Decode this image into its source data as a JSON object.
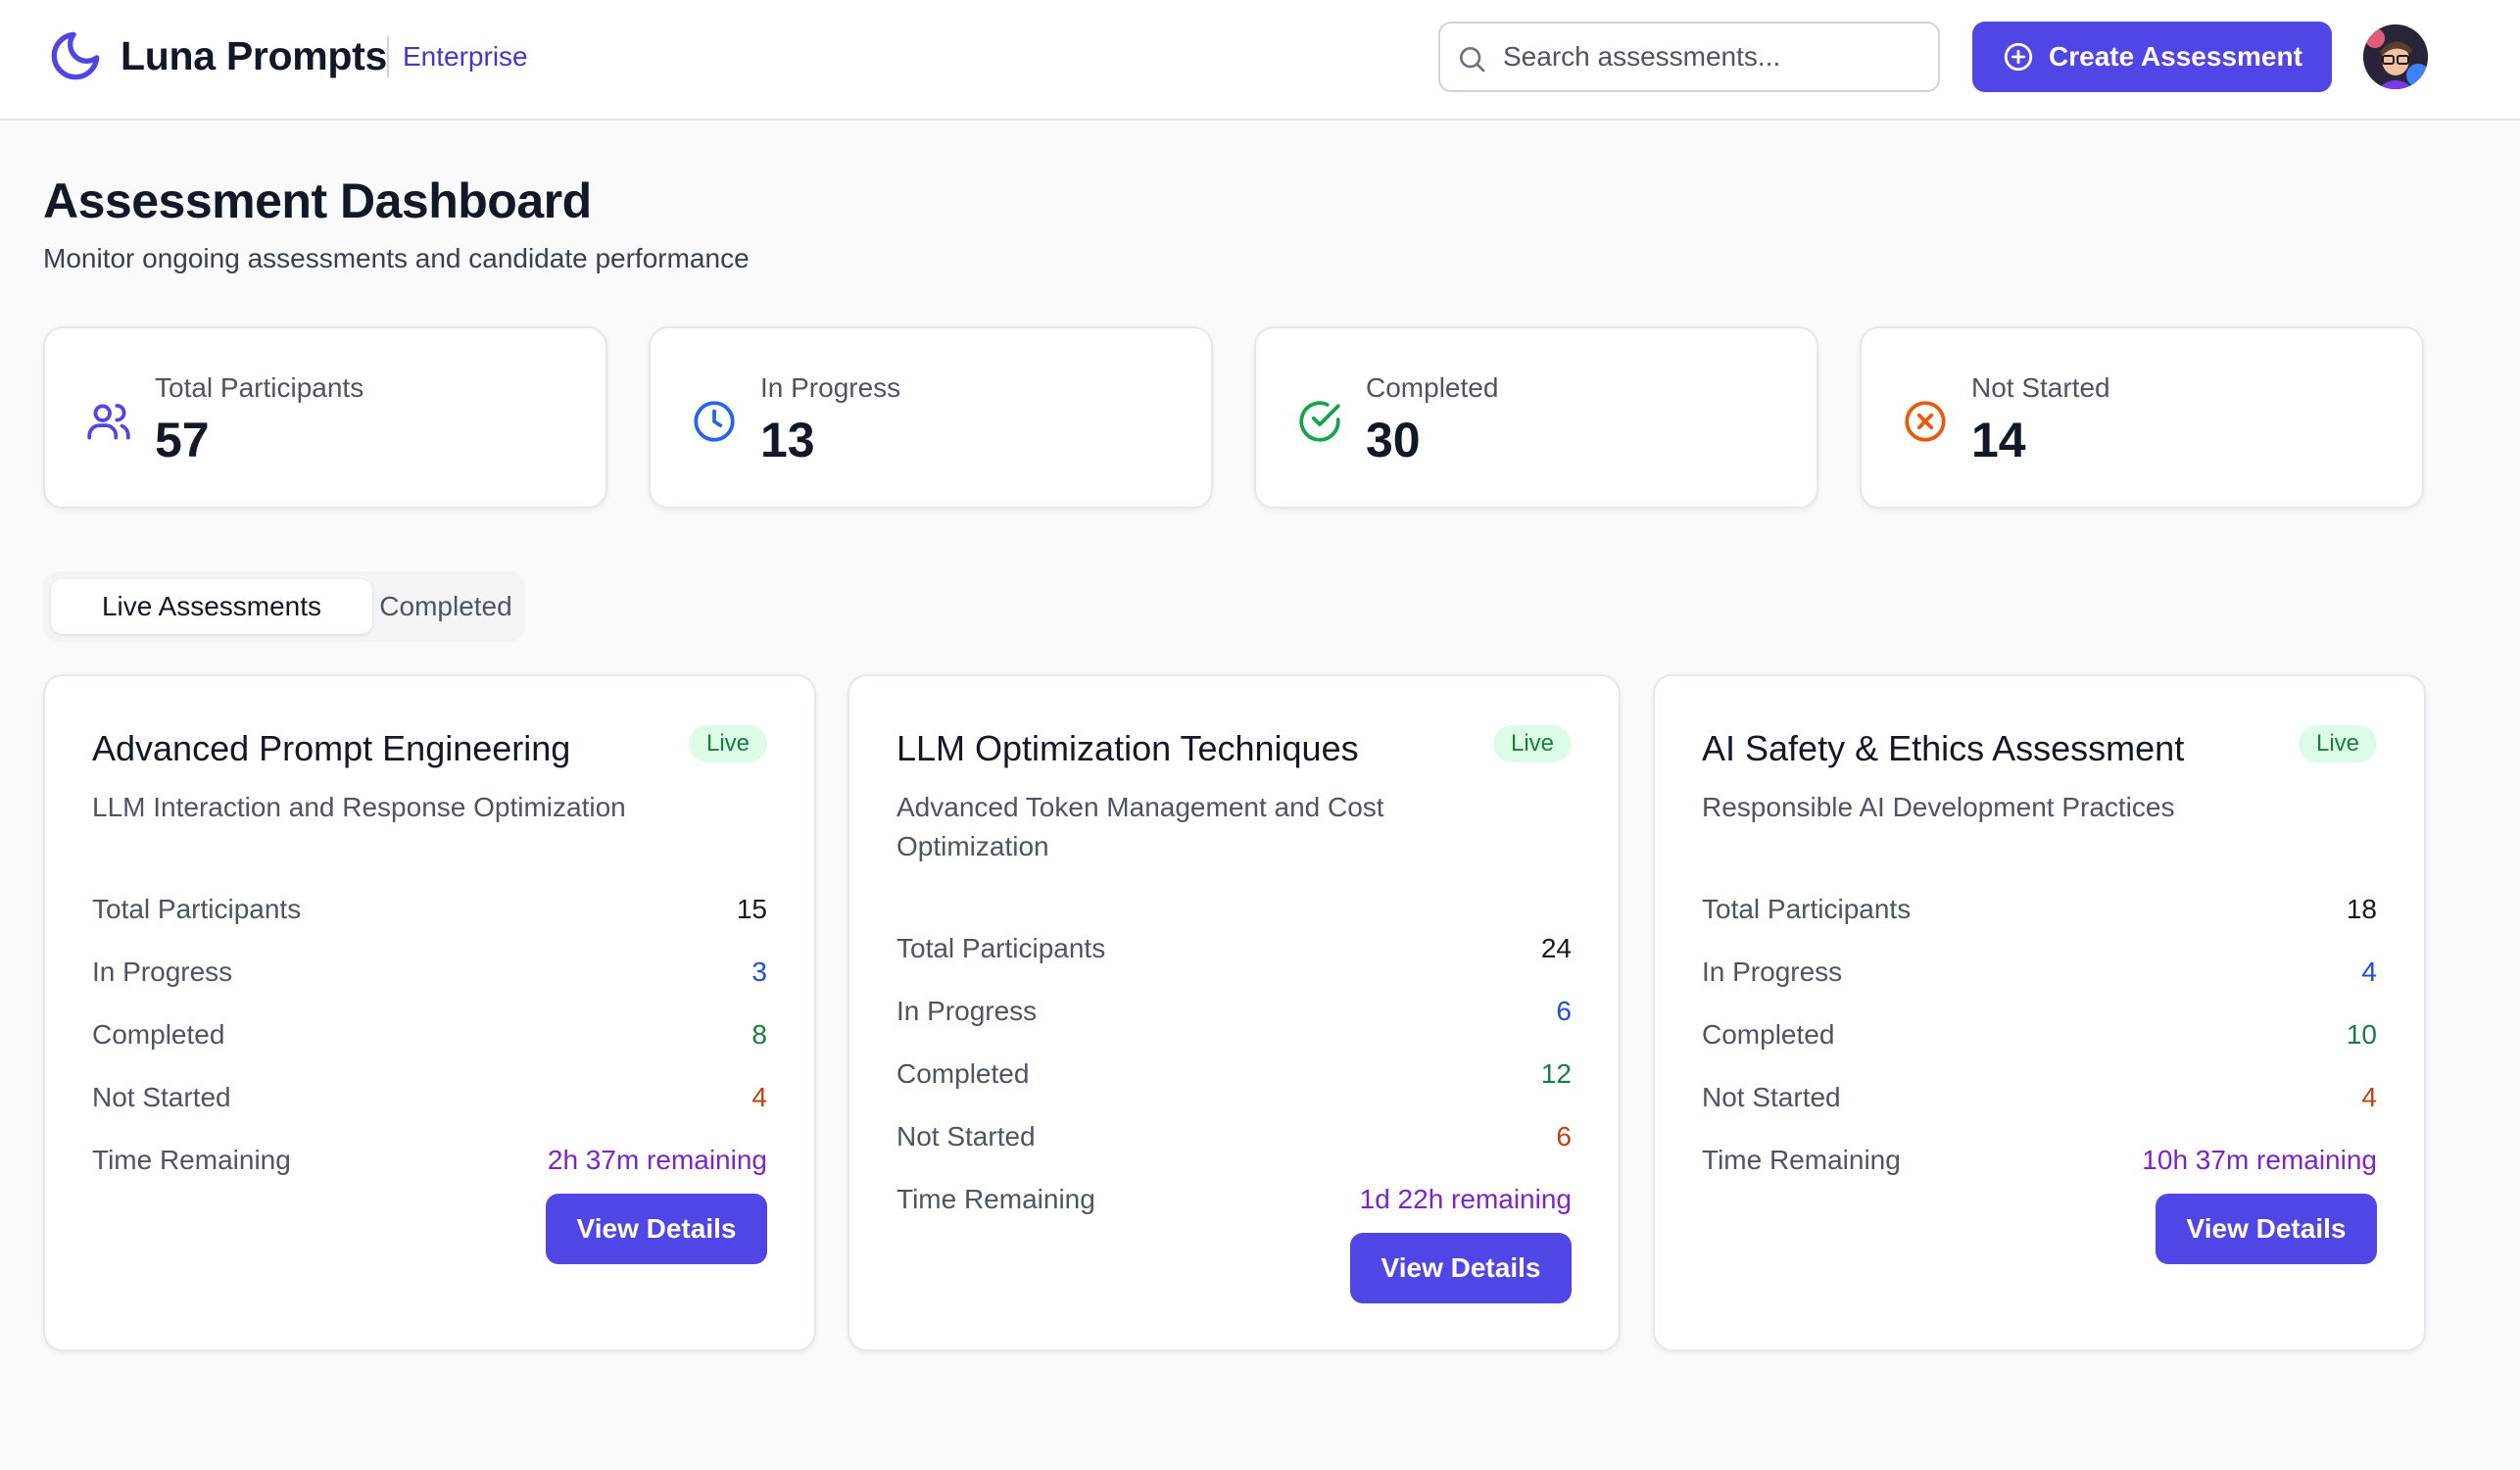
{
  "header": {
    "brand": "Luna Prompts",
    "tag": "Enterprise",
    "search_placeholder": "Search assessments...",
    "create_label": "Create Assessment"
  },
  "page": {
    "title": "Assessment Dashboard",
    "subtitle": "Monitor ongoing assessments and candidate performance"
  },
  "summary": [
    {
      "label": "Total Participants",
      "value": "57",
      "icon": "users-icon"
    },
    {
      "label": "In Progress",
      "value": "13",
      "icon": "clock-icon"
    },
    {
      "label": "Completed",
      "value": "30",
      "icon": "check-circle-icon"
    },
    {
      "label": "Not Started",
      "value": "14",
      "icon": "x-circle-icon"
    }
  ],
  "tabs": [
    "Live Assessments",
    "Completed"
  ],
  "assessments": [
    {
      "title": "Advanced Prompt Engineering",
      "badge": "Live",
      "subtitle": "LLM Interaction and Response Optimization",
      "stats": {
        "total_label": "Total Participants",
        "total": "15",
        "progress_label": "In Progress",
        "progress": "3",
        "completed_label": "Completed",
        "completed": "8",
        "not_started_label": "Not Started",
        "not_started": "4",
        "time_label": "Time Remaining",
        "time": "2h 37m remaining"
      },
      "button": "View Details"
    },
    {
      "title": "LLM Optimization Techniques",
      "badge": "Live",
      "subtitle": "Advanced Token Management and Cost Optimization",
      "stats": {
        "total_label": "Total Participants",
        "total": "24",
        "progress_label": "In Progress",
        "progress": "6",
        "completed_label": "Completed",
        "completed": "12",
        "not_started_label": "Not Started",
        "not_started": "6",
        "time_label": "Time Remaining",
        "time": "1d 22h remaining"
      },
      "button": "View Details"
    },
    {
      "title": "AI Safety & Ethics Assessment",
      "badge": "Live",
      "subtitle": "Responsible AI Development Practices",
      "stats": {
        "total_label": "Total Participants",
        "total": "18",
        "progress_label": "In Progress",
        "progress": "4",
        "completed_label": "Completed",
        "completed": "10",
        "not_started_label": "Not Started",
        "not_started": "4",
        "time_label": "Time Remaining",
        "time": "10h 37m remaining"
      },
      "button": "View Details"
    }
  ],
  "colors": {
    "accent": "#4f46e5",
    "blue": "#1d4ed8",
    "green": "#15803d",
    "orange": "#c2410c",
    "purple": "#7e22ce"
  }
}
